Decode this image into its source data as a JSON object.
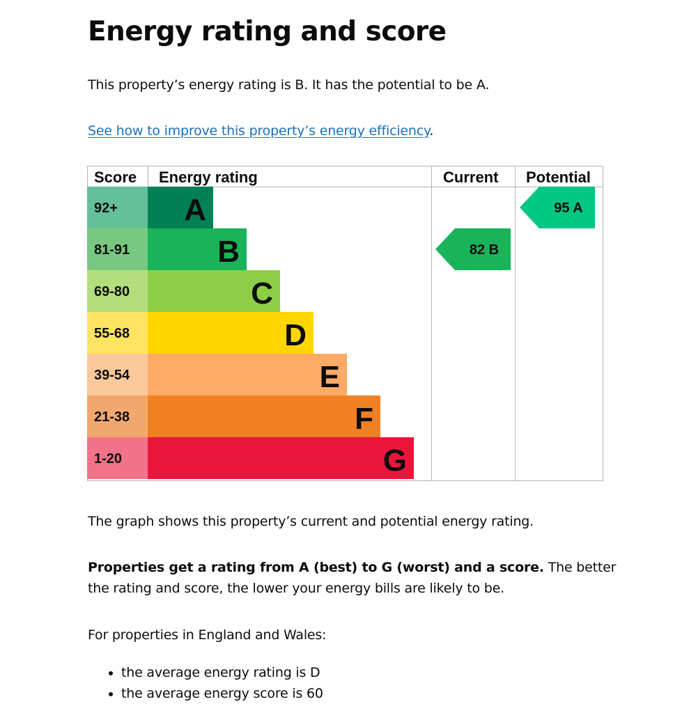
{
  "page": {
    "title": "Energy rating and score",
    "intro": "This property’s energy rating is B. It has the potential to be A.",
    "improve_link": "See how to improve this property’s energy efficiency",
    "improve_link_suffix": ".",
    "graph_description": "The graph shows this property’s current and potential energy rating.",
    "ratings_bold": "Properties get a rating from A (best) to G (worst) and a score.",
    "ratings_rest": " The better the rating and score, the lower your energy bills are likely to be.",
    "averages_intro": "For properties in England and Wales:",
    "averages": [
      "the average energy rating is D",
      "the average energy score is 60"
    ]
  },
  "chart_data": {
    "type": "bar",
    "headers": [
      "Score",
      "Energy rating",
      "Current",
      "Potential"
    ],
    "bands": [
      {
        "rating": "A",
        "score_range": "92+",
        "color": "#008054",
        "score_color": "#64c09a"
      },
      {
        "rating": "B",
        "score_range": "81-91",
        "color": "#19b459",
        "score_color": "#78c97f"
      },
      {
        "rating": "C",
        "score_range": "69-80",
        "color": "#8dce46",
        "score_color": "#b3de7e"
      },
      {
        "rating": "D",
        "score_range": "55-68",
        "color": "#ffd500",
        "score_color": "#fee460"
      },
      {
        "rating": "E",
        "score_range": "39-54",
        "color": "#fcaa65",
        "score_color": "#fbc89c"
      },
      {
        "rating": "F",
        "score_range": "21-38",
        "color": "#ef8023",
        "score_color": "#f2a86d"
      },
      {
        "rating": "G",
        "score_range": "1-20",
        "color": "#e9153b",
        "score_color": "#f1738a"
      }
    ],
    "current": {
      "score": 82,
      "rating": "B",
      "label": "82  B",
      "color": "#19b459"
    },
    "potential": {
      "score": 95,
      "rating": "A",
      "label": "95  A",
      "color": "#00c781"
    }
  }
}
